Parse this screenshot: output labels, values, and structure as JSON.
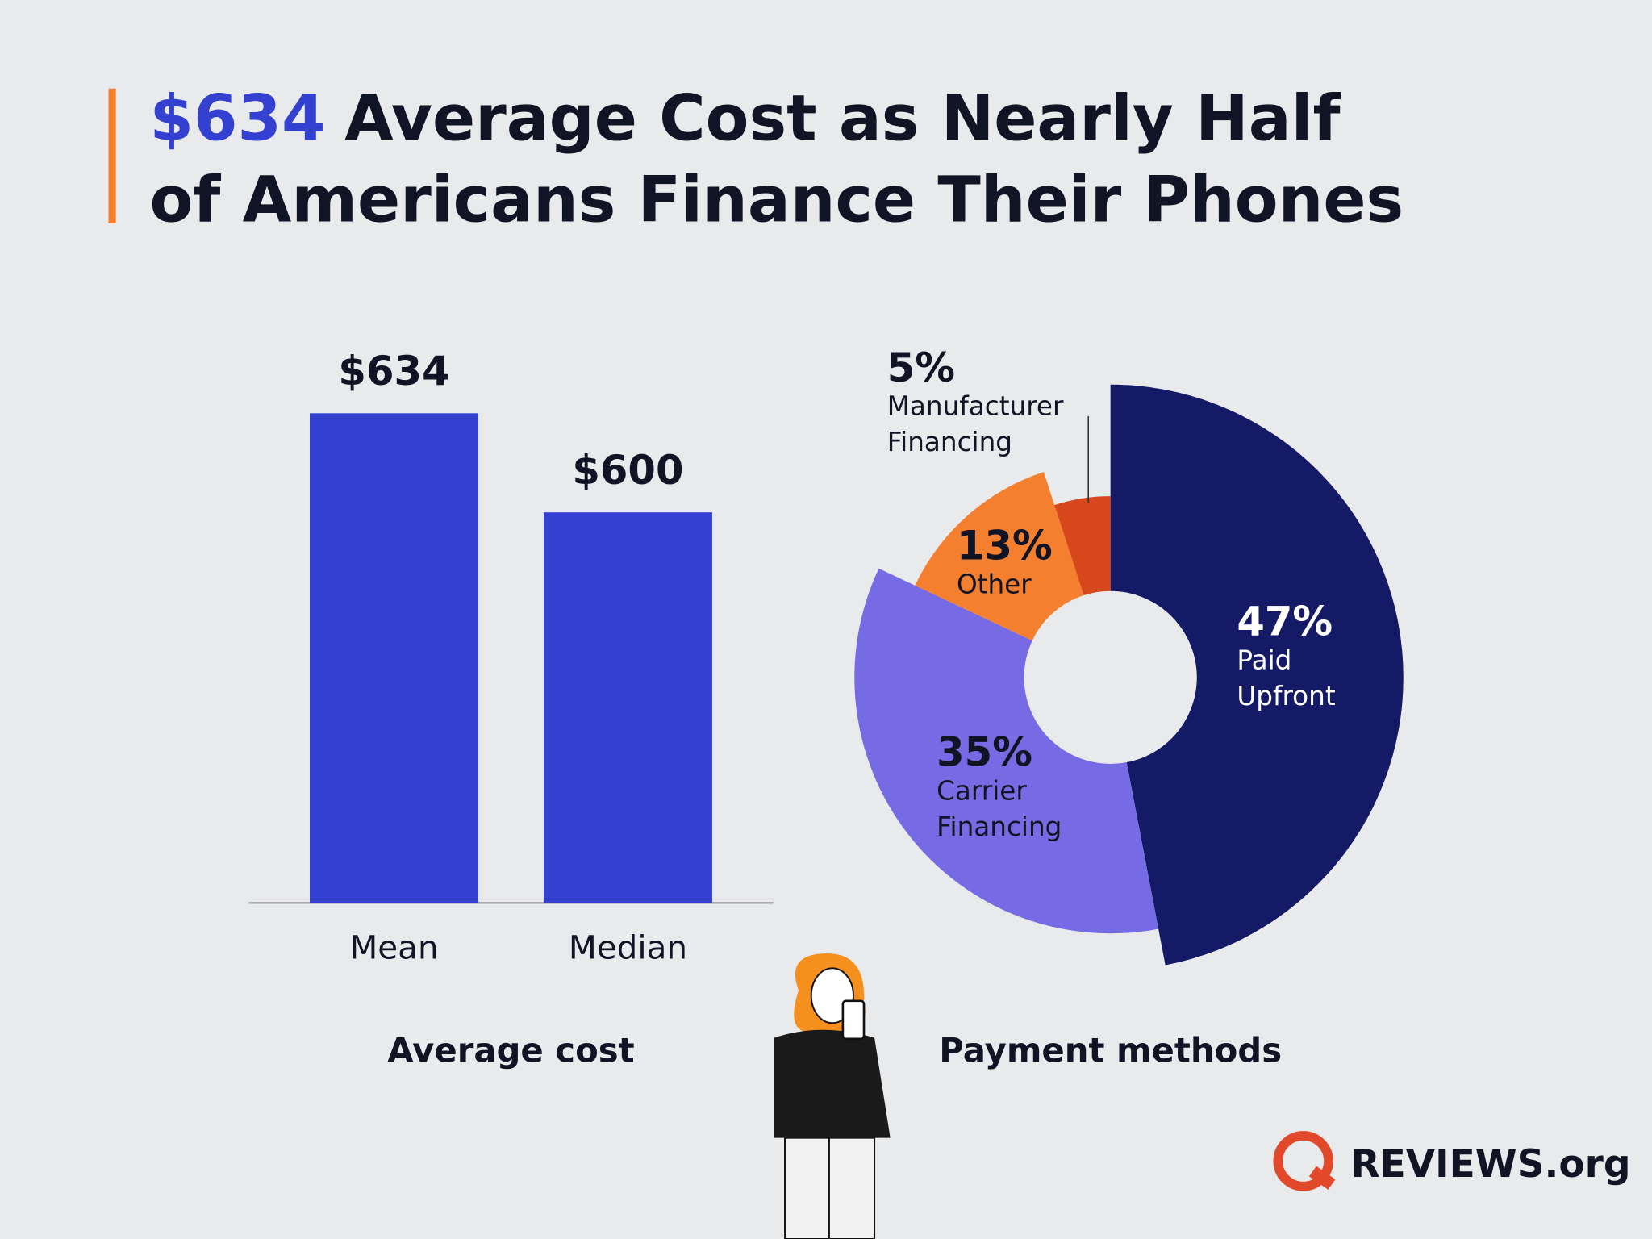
{
  "header": {
    "title_highlight": "$634",
    "title_lines": [
      "Average Cost as Nearly Half",
      "of Americans Finance Their Phones"
    ]
  },
  "chart_data": [
    {
      "type": "bar",
      "title": "Average cost",
      "categories": [
        "Mean",
        "Median"
      ],
      "values": [
        634,
        600
      ],
      "value_labels": [
        "$634",
        "$600"
      ],
      "color": "#3340d0",
      "ylim": [
        466,
        680
      ]
    },
    {
      "type": "pie",
      "title": "Payment methods",
      "categories": [
        "Paid Upfront",
        "Carrier Financing",
        "Other",
        "Manufacturer Financing"
      ],
      "values": [
        47,
        35,
        13,
        5
      ],
      "value_labels": [
        "47%",
        "35%",
        "13%",
        "5%"
      ],
      "colors": [
        "#151a66",
        "#766be4",
        "#f47f2f",
        "#d8461b"
      ]
    }
  ],
  "logo": "REVIEWS.org"
}
